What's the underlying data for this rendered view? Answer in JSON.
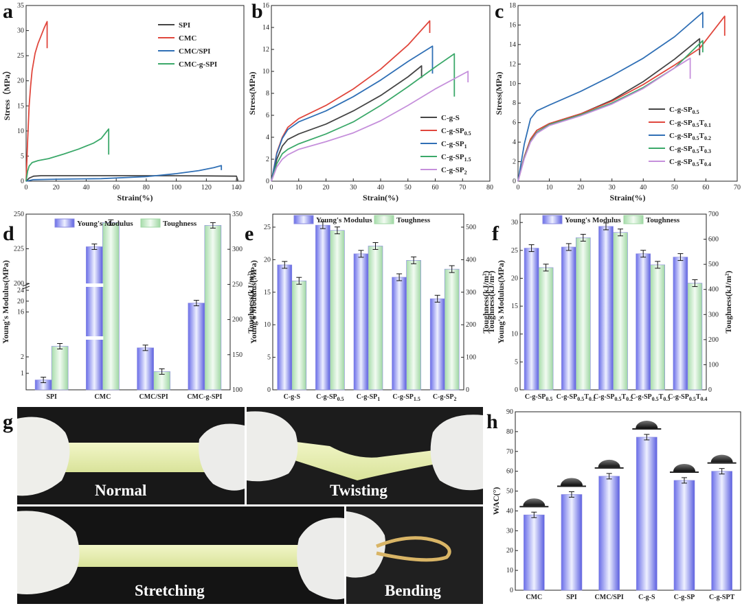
{
  "figure": {
    "panel_letters": [
      "a",
      "b",
      "c",
      "d",
      "e",
      "f",
      "g",
      "h"
    ]
  },
  "chart_data": [
    {
      "id": "a",
      "type": "line",
      "xlabel": "Strain(%)",
      "ylabel": "Stress（MPa）",
      "xlim": [
        0,
        145
      ],
      "ylim": [
        0,
        35
      ],
      "xticks": [
        0,
        20,
        40,
        60,
        80,
        100,
        120,
        140
      ],
      "yticks": [
        0,
        5,
        10,
        15,
        20,
        25,
        30,
        35
      ],
      "series": [
        {
          "name": "SPI",
          "color": "#444444",
          "points": [
            [
              0,
              0
            ],
            [
              2,
              0.6
            ],
            [
              5,
              1.0
            ],
            [
              10,
              1.1
            ],
            [
              40,
              1.1
            ],
            [
              80,
              1.1
            ],
            [
              120,
              1.05
            ],
            [
              140,
              1.0
            ],
            [
              141,
              0.1
            ]
          ]
        },
        {
          "name": "CMC",
          "color": "#e0463c",
          "points": [
            [
              0,
              0
            ],
            [
              1,
              8
            ],
            [
              2,
              15
            ],
            [
              3,
              19
            ],
            [
              4,
              22
            ],
            [
              6,
              25.5
            ],
            [
              8,
              27.5
            ],
            [
              10,
              29
            ],
            [
              12,
              30.5
            ],
            [
              14,
              31.8
            ],
            [
              14,
              26.5
            ]
          ]
        },
        {
          "name": "CMC/SPI",
          "color": "#2f6fb5",
          "points": [
            [
              0,
              0
            ],
            [
              5,
              0.3
            ],
            [
              20,
              0.4
            ],
            [
              50,
              0.5
            ],
            [
              80,
              0.9
            ],
            [
              100,
              1.5
            ],
            [
              115,
              2.1
            ],
            [
              125,
              2.7
            ],
            [
              130,
              3.1
            ],
            [
              130,
              2.2
            ]
          ]
        },
        {
          "name": "CMC-g-SPI",
          "color": "#3aa869",
          "points": [
            [
              0,
              0
            ],
            [
              1,
              2
            ],
            [
              2,
              3
            ],
            [
              4,
              3.7
            ],
            [
              8,
              4.1
            ],
            [
              15,
              4.5
            ],
            [
              25,
              5.4
            ],
            [
              35,
              6.4
            ],
            [
              45,
              7.6
            ],
            [
              50,
              8.5
            ],
            [
              55,
              10.4
            ],
            [
              55,
              5.3
            ]
          ]
        }
      ]
    },
    {
      "id": "b",
      "type": "line",
      "xlabel": "Strain(%)",
      "ylabel": "Stress(MPa)",
      "xlim": [
        0,
        80
      ],
      "ylim": [
        0,
        16
      ],
      "xticks": [
        0,
        10,
        20,
        30,
        40,
        50,
        60,
        70,
        80
      ],
      "yticks": [
        0,
        2,
        4,
        6,
        8,
        10,
        12,
        14,
        16
      ],
      "series": [
        {
          "name": "C-g-S",
          "color": "#444444",
          "points": [
            [
              0,
              0
            ],
            [
              2,
              2
            ],
            [
              4,
              3.2
            ],
            [
              6,
              3.8
            ],
            [
              10,
              4.3
            ],
            [
              20,
              5.2
            ],
            [
              30,
              6.4
            ],
            [
              40,
              7.8
            ],
            [
              50,
              9.5
            ],
            [
              55,
              10.5
            ],
            [
              55,
              9.4
            ]
          ]
        },
        {
          "name": "C-g-SP0.5",
          "color": "#e0463c",
          "points": [
            [
              0,
              0
            ],
            [
              2,
              2.6
            ],
            [
              4,
              4
            ],
            [
              6,
              4.9
            ],
            [
              10,
              5.7
            ],
            [
              20,
              6.9
            ],
            [
              30,
              8.4
            ],
            [
              40,
              10.2
            ],
            [
              50,
              12.4
            ],
            [
              58,
              14.6
            ],
            [
              58,
              13.5
            ]
          ]
        },
        {
          "name": "C-g-SP1",
          "color": "#2f6fb5",
          "points": [
            [
              0,
              0
            ],
            [
              2,
              2.5
            ],
            [
              4,
              3.9
            ],
            [
              6,
              4.7
            ],
            [
              10,
              5.4
            ],
            [
              20,
              6.4
            ],
            [
              30,
              7.7
            ],
            [
              40,
              9.2
            ],
            [
              50,
              10.9
            ],
            [
              59,
              12.3
            ],
            [
              59,
              9.8
            ]
          ]
        },
        {
          "name": "C-g-SP1.5",
          "color": "#3aa869",
          "points": [
            [
              0,
              0
            ],
            [
              2,
              1.6
            ],
            [
              4,
              2.5
            ],
            [
              6,
              2.9
            ],
            [
              10,
              3.4
            ],
            [
              20,
              4.3
            ],
            [
              30,
              5.4
            ],
            [
              40,
              6.9
            ],
            [
              50,
              8.6
            ],
            [
              60,
              10.4
            ],
            [
              67,
              11.6
            ],
            [
              67,
              7.7
            ]
          ]
        },
        {
          "name": "C-g-SP2",
          "color": "#c58fdb",
          "points": [
            [
              0,
              0
            ],
            [
              2,
              1.3
            ],
            [
              4,
              2
            ],
            [
              6,
              2.4
            ],
            [
              10,
              2.9
            ],
            [
              20,
              3.6
            ],
            [
              30,
              4.4
            ],
            [
              40,
              5.5
            ],
            [
              50,
              6.9
            ],
            [
              60,
              8.4
            ],
            [
              72,
              10
            ],
            [
              72,
              9
            ]
          ]
        }
      ]
    },
    {
      "id": "c",
      "type": "line",
      "xlabel": "Strain(%)",
      "ylabel": "Stress(MPa)",
      "xlim": [
        0,
        70
      ],
      "ylim": [
        0,
        18
      ],
      "xticks": [
        0,
        10,
        20,
        30,
        40,
        50,
        60,
        70
      ],
      "yticks": [
        0,
        2,
        4,
        6,
        8,
        10,
        12,
        14,
        16,
        18
      ],
      "series": [
        {
          "name": "C-g-SP0.5",
          "color": "#444444",
          "points": [
            [
              0,
              0
            ],
            [
              2,
              2.5
            ],
            [
              4,
              4.3
            ],
            [
              6,
              5.2
            ],
            [
              10,
              5.9
            ],
            [
              20,
              6.9
            ],
            [
              30,
              8.3
            ],
            [
              40,
              10.2
            ],
            [
              50,
              12.5
            ],
            [
              58,
              14.6
            ],
            [
              58,
              12.9
            ]
          ]
        },
        {
          "name": "C-g-SP0.5T0.1",
          "color": "#e0463c",
          "points": [
            [
              0,
              0
            ],
            [
              2,
              2.5
            ],
            [
              4,
              4.3
            ],
            [
              6,
              5.2
            ],
            [
              10,
              5.9
            ],
            [
              20,
              6.9
            ],
            [
              30,
              8.2
            ],
            [
              40,
              9.9
            ],
            [
              50,
              11.9
            ],
            [
              58,
              13.6
            ],
            [
              66,
              16.9
            ],
            [
              66,
              14.9
            ]
          ]
        },
        {
          "name": "C-g-SP0.5T0.2",
          "color": "#2f6fb5",
          "points": [
            [
              0,
              0
            ],
            [
              2,
              3.8
            ],
            [
              4,
              6.4
            ],
            [
              6,
              7.2
            ],
            [
              10,
              7.8
            ],
            [
              20,
              9.2
            ],
            [
              30,
              10.8
            ],
            [
              40,
              12.6
            ],
            [
              50,
              14.8
            ],
            [
              59,
              17.3
            ],
            [
              59,
              15.7
            ]
          ]
        },
        {
          "name": "C-g-SP0.5T0.3",
          "color": "#3aa869",
          "points": [
            [
              0,
              0
            ],
            [
              2,
              2.4
            ],
            [
              4,
              4.1
            ],
            [
              6,
              5
            ],
            [
              10,
              5.8
            ],
            [
              20,
              6.8
            ],
            [
              30,
              8
            ],
            [
              40,
              9.6
            ],
            [
              50,
              11.6
            ],
            [
              59,
              14.4
            ],
            [
              59,
              13.2
            ]
          ]
        },
        {
          "name": "C-g-SP0.5T0.4",
          "color": "#c58fdb",
          "points": [
            [
              0,
              0
            ],
            [
              2,
              2.3
            ],
            [
              4,
              4
            ],
            [
              6,
              4.9
            ],
            [
              10,
              5.7
            ],
            [
              20,
              6.7
            ],
            [
              30,
              7.9
            ],
            [
              40,
              9.5
            ],
            [
              50,
              11.6
            ],
            [
              55,
              12.6
            ],
            [
              55,
              10.5
            ]
          ]
        }
      ]
    },
    {
      "id": "d",
      "type": "bar",
      "categories": [
        "SPI",
        "CMC",
        "CMC/SPI",
        "CMC-g-SPI"
      ],
      "legend": [
        "Young's Modulus",
        "Toughness"
      ],
      "ylabel": "Young's Modulus(MPa)",
      "y2label": "Toughness(kJ/m²)",
      "yticks_low": [
        0,
        4,
        8,
        12,
        16,
        20,
        24
      ],
      "ytick_labels_low": [
        "",
        "",
        "",
        "",
        "16",
        "20",
        "24"
      ],
      "yticks_high": [
        200,
        225,
        250
      ],
      "small_ticks": [
        "1",
        "2"
      ],
      "y2lim": [
        100,
        350
      ],
      "y2ticks": [
        100,
        150,
        200,
        250,
        300,
        350
      ],
      "series": [
        {
          "name": "Young's Modulus",
          "values": [
            0.6,
            226.5,
            2.8,
            19.3
          ]
        },
        {
          "name": "Toughness",
          "values": [
            162,
            338,
            126,
            334
          ]
        }
      ]
    },
    {
      "id": "e",
      "type": "bar",
      "categories": [
        "C-g-S",
        "C-g-SP0.5",
        "C-g-SP1",
        "C-g-SP1.5",
        "C-g-SP2"
      ],
      "legend": [
        "Young's Modulus",
        "Toughness"
      ],
      "ylabel": "Young's Modulus(MPa)",
      "y2label": "Toughness(kJ/m²)",
      "ylim": [
        0,
        27
      ],
      "yticks": [
        0,
        5,
        10,
        15,
        20,
        25
      ],
      "y2lim": [
        0,
        540
      ],
      "y2ticks": [
        0,
        100,
        200,
        300,
        400,
        500
      ],
      "series": [
        {
          "name": "Young's Modulus",
          "values": [
            19.2,
            25.3,
            20.9,
            17.3,
            14.0
          ]
        },
        {
          "name": "Toughness",
          "values": [
            335,
            490,
            442,
            398,
            371
          ]
        }
      ]
    },
    {
      "id": "f",
      "type": "bar",
      "categories": [
        "C-g-SP0.5",
        "C-g-SP0.5T0.1",
        "C-g-SP0.5T0.2",
        "C-g-SP0.5T0.3",
        "C-g-SP0.5T0.4"
      ],
      "legend": [
        "Young's Modulus",
        "Toughness"
      ],
      "ylabel": "Young's Modulus(MPa)",
      "ylabel_top": "Toughness(kJ/m²)",
      "y2label": "Toughness(kJ/m²)",
      "ylim": [
        0,
        31.5
      ],
      "yticks": [
        0,
        5,
        10,
        15,
        20,
        25,
        30
      ],
      "y2lim": [
        0,
        700
      ],
      "y2ticks": [
        0,
        100,
        200,
        300,
        400,
        500,
        600,
        700
      ],
      "series": [
        {
          "name": "Young's Modulus",
          "values": [
            25.4,
            25.6,
            29.3,
            24.4,
            23.8
          ]
        },
        {
          "name": "Toughness",
          "values": [
            487,
            606,
            627,
            498,
            425
          ]
        }
      ]
    },
    {
      "id": "h",
      "type": "bar",
      "categories": [
        "CMC",
        "SPI",
        "CMC/SPI",
        "C-g-S",
        "C-g-SP",
        "C-g-SPT"
      ],
      "ylabel": "WAC(°)",
      "ylim": [
        0,
        90
      ],
      "yticks": [
        0,
        10,
        20,
        30,
        40,
        50,
        60,
        70,
        80,
        90
      ],
      "series": [
        {
          "name": "WAC",
          "values": [
            38,
            48.3,
            57.5,
            77.2,
            55.4,
            60
          ]
        }
      ]
    }
  ],
  "photos": {
    "captions": [
      "Normal",
      "Twisting",
      "Stretching",
      "Bending"
    ]
  }
}
